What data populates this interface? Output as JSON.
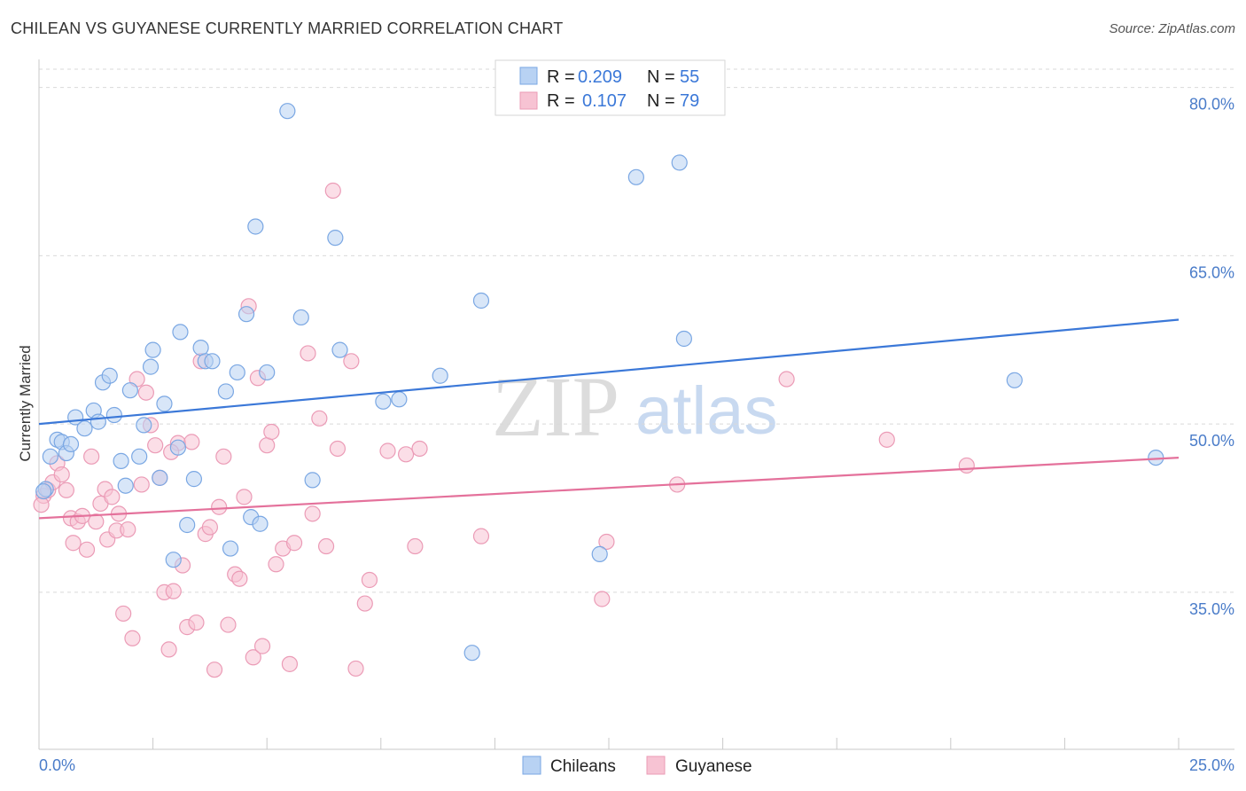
{
  "header": {
    "title": "CHILEAN VS GUYANESE CURRENTLY MARRIED CORRELATION CHART",
    "source": "Source: ZipAtlas.com"
  },
  "colors": {
    "blue": "#3b78d8",
    "blue_fill": "#b8d2f3",
    "blue_stroke": "#7aa7e3",
    "pink": "#e4719b",
    "pink_fill": "#f7c3d3",
    "pink_stroke": "#eb9bb6",
    "tick_text": "#4a7cc9",
    "grid": "#d9d9d9"
  },
  "watermark": {
    "zip": "ZIP",
    "atlas": "atlas"
  },
  "legend": {
    "rows": [
      {
        "r_label": "R =",
        "r_value": "0.209",
        "n_label": "N =",
        "n_value": "55"
      },
      {
        "r_label": "R =",
        "r_value": "0.107",
        "n_label": "N =",
        "n_value": "79"
      }
    ]
  },
  "bottom_legend": [
    "Chileans",
    "Guyanese"
  ],
  "chart_data": {
    "type": "scatter",
    "title": "CHILEAN VS GUYANESE CURRENTLY MARRIED CORRELATION CHART",
    "xlabel": "",
    "ylabel": "Currently Married",
    "xlim": [
      0,
      25
    ],
    "ylim": [
      21,
      82.5
    ],
    "x_tick_labels": [
      "0.0%",
      "25.0%"
    ],
    "y_ticks": [
      35,
      50,
      65,
      80
    ],
    "y_tick_labels": [
      "35.0%",
      "50.0%",
      "65.0%",
      "80.0%"
    ],
    "grid": true,
    "series": [
      {
        "name": "Chileans",
        "R": 0.209,
        "N": 55,
        "trend": {
          "x": [
            0,
            25
          ],
          "y": [
            50.0,
            59.3
          ]
        },
        "points": [
          [
            0.15,
            44.2
          ],
          [
            0.25,
            47.1
          ],
          [
            0.4,
            48.6
          ],
          [
            0.5,
            48.4
          ],
          [
            0.6,
            47.4
          ],
          [
            0.7,
            48.2
          ],
          [
            0.8,
            50.6
          ],
          [
            1.0,
            49.6
          ],
          [
            1.2,
            51.2
          ],
          [
            1.3,
            50.2
          ],
          [
            1.4,
            53.7
          ],
          [
            1.55,
            54.3
          ],
          [
            1.65,
            50.8
          ],
          [
            1.8,
            46.7
          ],
          [
            1.9,
            44.5
          ],
          [
            2.0,
            53.0
          ],
          [
            2.2,
            47.1
          ],
          [
            2.3,
            49.9
          ],
          [
            2.45,
            55.1
          ],
          [
            2.5,
            56.6
          ],
          [
            2.65,
            45.2
          ],
          [
            2.75,
            51.8
          ],
          [
            2.95,
            37.9
          ],
          [
            3.05,
            47.9
          ],
          [
            3.1,
            58.2
          ],
          [
            3.25,
            41.0
          ],
          [
            3.4,
            45.1
          ],
          [
            3.55,
            56.8
          ],
          [
            3.65,
            55.6
          ],
          [
            3.8,
            55.6
          ],
          [
            4.1,
            52.9
          ],
          [
            4.2,
            38.9
          ],
          [
            4.35,
            54.6
          ],
          [
            4.55,
            59.8
          ],
          [
            4.65,
            41.7
          ],
          [
            4.75,
            67.6
          ],
          [
            4.85,
            41.1
          ],
          [
            5.0,
            54.6
          ],
          [
            5.45,
            77.9
          ],
          [
            5.75,
            59.5
          ],
          [
            6.0,
            45.0
          ],
          [
            6.5,
            66.6
          ],
          [
            6.6,
            56.6
          ],
          [
            7.55,
            52.0
          ],
          [
            7.9,
            52.2
          ],
          [
            8.8,
            54.3
          ],
          [
            9.5,
            29.6
          ],
          [
            9.7,
            61.0
          ],
          [
            12.3,
            38.4
          ],
          [
            13.1,
            72.0
          ],
          [
            14.05,
            73.3
          ],
          [
            14.15,
            57.6
          ],
          [
            21.4,
            53.9
          ],
          [
            24.5,
            47.0
          ],
          [
            0.1,
            44.0
          ]
        ]
      },
      {
        "name": "Guyanese",
        "R": 0.107,
        "N": 79,
        "trend": {
          "x": [
            0,
            25
          ],
          "y": [
            41.6,
            47.0
          ]
        },
        "points": [
          [
            0.1,
            43.6
          ],
          [
            0.2,
            44.1
          ],
          [
            0.3,
            44.8
          ],
          [
            0.4,
            46.5
          ],
          [
            0.5,
            45.5
          ],
          [
            0.6,
            44.1
          ],
          [
            0.7,
            41.6
          ],
          [
            0.75,
            39.4
          ],
          [
            0.85,
            41.3
          ],
          [
            0.95,
            41.8
          ],
          [
            1.05,
            38.8
          ],
          [
            1.15,
            47.1
          ],
          [
            1.25,
            41.3
          ],
          [
            1.35,
            42.9
          ],
          [
            1.45,
            44.2
          ],
          [
            1.5,
            39.7
          ],
          [
            1.6,
            43.5
          ],
          [
            1.7,
            40.5
          ],
          [
            1.75,
            42.0
          ],
          [
            1.85,
            33.1
          ],
          [
            1.95,
            40.6
          ],
          [
            2.05,
            30.9
          ],
          [
            2.15,
            54.0
          ],
          [
            2.25,
            44.6
          ],
          [
            2.35,
            52.8
          ],
          [
            2.45,
            49.9
          ],
          [
            2.55,
            48.1
          ],
          [
            2.65,
            45.2
          ],
          [
            2.75,
            35.0
          ],
          [
            2.85,
            29.9
          ],
          [
            2.95,
            35.1
          ],
          [
            3.05,
            48.3
          ],
          [
            3.15,
            37.4
          ],
          [
            3.25,
            31.9
          ],
          [
            3.35,
            48.4
          ],
          [
            3.45,
            32.3
          ],
          [
            3.55,
            55.6
          ],
          [
            3.65,
            40.2
          ],
          [
            3.75,
            40.8
          ],
          [
            3.85,
            28.1
          ],
          [
            3.95,
            42.6
          ],
          [
            4.05,
            47.1
          ],
          [
            4.15,
            32.1
          ],
          [
            4.3,
            36.6
          ],
          [
            4.4,
            36.2
          ],
          [
            4.5,
            43.5
          ],
          [
            4.6,
            60.5
          ],
          [
            4.7,
            29.2
          ],
          [
            4.8,
            54.1
          ],
          [
            4.9,
            30.2
          ],
          [
            5.0,
            48.1
          ],
          [
            5.1,
            49.3
          ],
          [
            5.2,
            37.5
          ],
          [
            5.35,
            38.9
          ],
          [
            5.5,
            28.6
          ],
          [
            5.6,
            39.4
          ],
          [
            5.9,
            56.3
          ],
          [
            6.0,
            42.0
          ],
          [
            6.15,
            50.5
          ],
          [
            6.3,
            39.1
          ],
          [
            6.45,
            70.8
          ],
          [
            6.55,
            47.8
          ],
          [
            6.85,
            55.6
          ],
          [
            6.95,
            28.2
          ],
          [
            7.15,
            34.0
          ],
          [
            7.25,
            36.1
          ],
          [
            7.65,
            47.6
          ],
          [
            8.05,
            47.3
          ],
          [
            8.25,
            39.1
          ],
          [
            8.35,
            47.8
          ],
          [
            9.7,
            40.0
          ],
          [
            12.35,
            34.4
          ],
          [
            12.45,
            39.5
          ],
          [
            14.0,
            44.6
          ],
          [
            16.4,
            54.0
          ],
          [
            18.6,
            48.6
          ],
          [
            20.35,
            46.3
          ],
          [
            0.05,
            42.8
          ],
          [
            2.9,
            47.5
          ]
        ]
      }
    ]
  }
}
